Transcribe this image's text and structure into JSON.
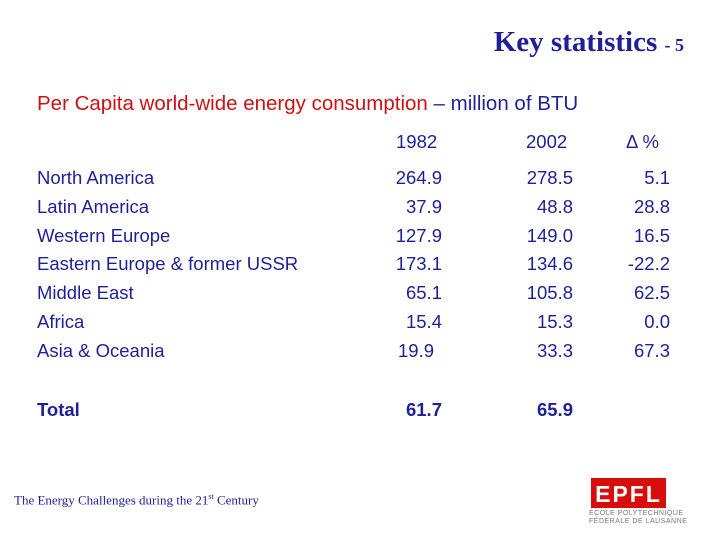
{
  "title": {
    "text": "Key statistics",
    "suffix": "- 5"
  },
  "subtitle": {
    "main": "Per Capita world-wide energy consumption",
    "unit": " – million of BTU"
  },
  "table": {
    "headers": [
      "1982",
      "2002",
      "Δ %"
    ],
    "rows": [
      {
        "label": "North America",
        "v1982": "264.9",
        "v2002": "278.5",
        "delta": "5.1"
      },
      {
        "label": "Latin America",
        "v1982": "37.9",
        "v2002": "48.8",
        "delta": "28.8"
      },
      {
        "label": "Western Europe",
        "v1982": "127.9",
        "v2002": "149.0",
        "delta": "16.5"
      },
      {
        "label": "Eastern Europe & former USSR",
        "v1982": "173.1",
        "v2002": "134.6",
        "delta": "-22.2"
      },
      {
        "label": "Middle East",
        "v1982": "65.1",
        "v2002": "105.8",
        "delta": "62.5"
      },
      {
        "label": "Africa",
        "v1982": "15.4",
        "v2002": "15.3",
        "delta": "0.0"
      },
      {
        "label": "Asia & Oceania",
        "v1982": "19.9",
        "v2002": "33.3",
        "delta": "67.3"
      }
    ],
    "total": {
      "label": "Total",
      "v1982": "61.7",
      "v2002": "65.9"
    }
  },
  "footer": {
    "text": "The Energy Challenges during the 21",
    "sup": "st",
    "end": " Century"
  },
  "logo": {
    "mark": "EPFL",
    "line1": "ÉCOLE POLYTECHNIQUE",
    "line2": "FÉDÉRALE DE LAUSANNE",
    "color": "#d90c0c"
  },
  "colors": {
    "text": "#1f1f9a",
    "accent": "#cc1111"
  }
}
